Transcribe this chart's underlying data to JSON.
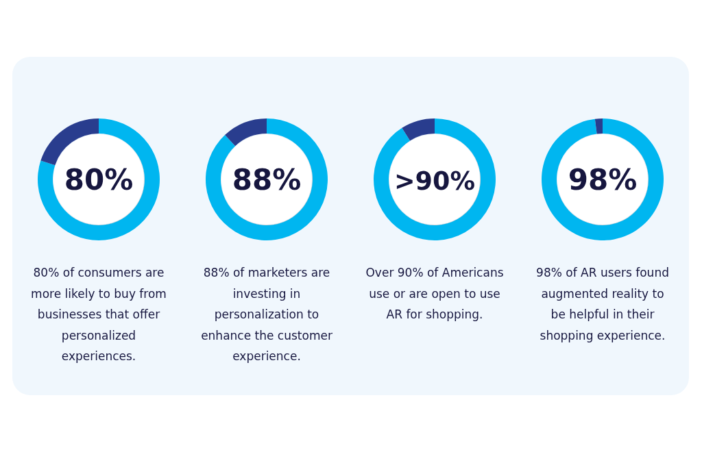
{
  "chart_data": [
    {
      "type": "donut",
      "categories": [
        null,
        null
      ],
      "values": [
        80,
        20
      ],
      "colors": [
        "#00b6f0",
        "#293d8e"
      ],
      "annotations": [
        "80%",
        "80% of consumers are more likely to buy from businesses that offer personalized experiences."
      ]
    },
    {
      "type": "donut",
      "categories": [
        null,
        null
      ],
      "values": [
        88,
        12
      ],
      "colors": [
        "#00b6f0",
        "#293d8e"
      ],
      "annotations": [
        "88%",
        "88% of marketers are investing in personalization to enhance the customer experience."
      ]
    },
    {
      "type": "donut",
      "categories": [
        null,
        null
      ],
      "values": [
        91,
        9
      ],
      "colors": [
        "#00b6f0",
        "#293d8e"
      ],
      "annotations": [
        ">90%",
        "Over 90% of Americans use or are open to use AR for shopping."
      ]
    },
    {
      "type": "donut",
      "categories": [
        null,
        null
      ],
      "values": [
        98,
        2
      ],
      "colors": [
        "#00b6f0",
        "#293d8e"
      ],
      "annotations": [
        "98%",
        "98% of AR users found augmented reality to be helpful in their shopping experience."
      ]
    }
  ]
}
